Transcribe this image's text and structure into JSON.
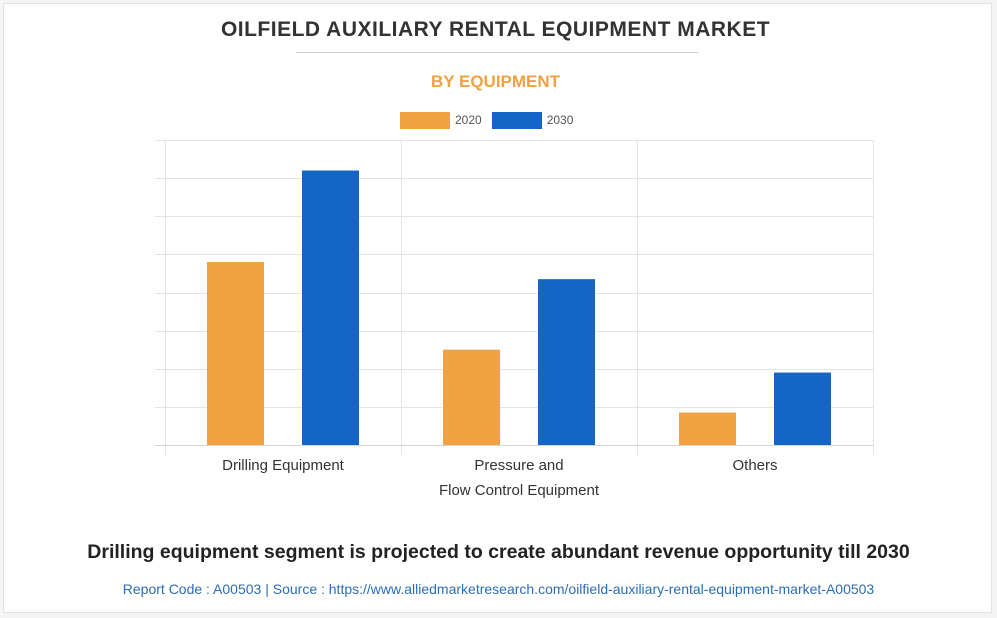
{
  "header": {
    "title": "OILFIELD AUXILIARY RENTAL EQUIPMENT MARKET",
    "subtitle": "BY EQUIPMENT"
  },
  "colors": {
    "series_2020": "#f0a142",
    "series_2030": "#1565c4",
    "grid": "#e4e4e4",
    "title": "#333333",
    "subtitle": "#f0a142",
    "footer": "#2a6db5"
  },
  "chart_data": {
    "type": "bar",
    "title": "OILFIELD AUXILIARY RENTAL EQUIPMENT MARKET",
    "subtitle": "BY EQUIPMENT",
    "categories": [
      [
        "Drilling Equipment"
      ],
      [
        "Pressure and",
        "Flow Control Equipment"
      ],
      [
        "Others"
      ]
    ],
    "series": [
      {
        "name": "2020",
        "values": [
          4.8,
          2.5,
          0.85
        ]
      },
      {
        "name": "2030",
        "values": [
          7.2,
          4.35,
          1.9
        ]
      }
    ],
    "ylim": [
      0,
      8
    ],
    "grid": true,
    "y_tick_labels_shown": false,
    "legend": "top-center",
    "xlabel": "",
    "ylabel": ""
  },
  "footer": {
    "headline": "Drilling equipment segment is projected to create abundant revenue opportunity till 2030",
    "source": "Report Code : A00503  |  Source : https://www.alliedmarketresearch.com/oilfield-auxiliary-rental-equipment-market-A00503"
  }
}
